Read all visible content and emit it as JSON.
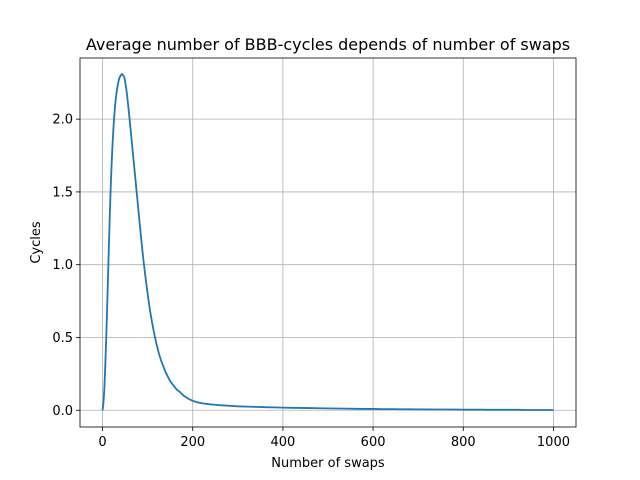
{
  "chart_data": {
    "type": "line",
    "title": "Average number of BBB-cycles depends of number of swaps",
    "xlabel": "Number of swaps",
    "ylabel": "Cycles",
    "xlim": [
      -50,
      1050
    ],
    "ylim": [
      -0.115,
      2.42
    ],
    "xticks": [
      0,
      200,
      400,
      600,
      800,
      1000
    ],
    "yticks": [
      0.0,
      0.5,
      1.0,
      1.5,
      2.0
    ],
    "xtick_labels": [
      "0",
      "200",
      "400",
      "600",
      "800",
      "1000"
    ],
    "ytick_labels": [
      "0.0",
      "0.5",
      "1.0",
      "1.5",
      "2.0"
    ],
    "grid": true,
    "line_color": "#1f77b4",
    "series": [
      {
        "x": [
          0,
          2,
          4,
          6,
          8,
          10,
          12,
          14,
          16,
          18,
          20,
          22,
          25,
          28,
          31,
          34,
          37,
          40,
          43,
          46,
          48,
          50,
          53,
          56,
          60,
          65,
          70,
          75,
          80,
          85,
          90,
          95,
          100,
          105,
          110,
          115,
          120,
          125,
          130,
          135,
          140,
          145,
          150,
          155,
          160,
          165,
          170,
          175,
          180,
          185,
          190,
          195,
          200,
          210,
          220,
          230,
          240,
          250,
          260,
          270,
          280,
          290,
          300,
          320,
          340,
          360,
          380,
          400,
          420,
          440,
          460,
          480,
          500,
          520,
          540,
          560,
          580,
          600,
          620,
          640,
          660,
          680,
          700,
          720,
          740,
          760,
          780,
          800,
          820,
          840,
          860,
          880,
          900,
          920,
          940,
          960,
          980,
          1000
        ],
        "y": [
          0.0,
          0.05,
          0.15,
          0.3,
          0.48,
          0.68,
          0.9,
          1.12,
          1.33,
          1.52,
          1.68,
          1.82,
          1.98,
          2.1,
          2.18,
          2.24,
          2.28,
          2.3,
          2.31,
          2.3,
          2.29,
          2.26,
          2.2,
          2.12,
          2.0,
          1.84,
          1.68,
          1.52,
          1.36,
          1.2,
          1.05,
          0.92,
          0.8,
          0.69,
          0.6,
          0.52,
          0.45,
          0.39,
          0.34,
          0.3,
          0.26,
          0.23,
          0.2,
          0.18,
          0.16,
          0.14,
          0.13,
          0.115,
          0.1,
          0.09,
          0.08,
          0.072,
          0.065,
          0.055,
          0.048,
          0.044,
          0.04,
          0.038,
          0.035,
          0.033,
          0.031,
          0.029,
          0.027,
          0.025,
          0.023,
          0.021,
          0.02,
          0.018,
          0.017,
          0.016,
          0.015,
          0.014,
          0.013,
          0.012,
          0.011,
          0.01,
          0.009,
          0.009,
          0.008,
          0.008,
          0.007,
          0.007,
          0.006,
          0.006,
          0.005,
          0.005,
          0.005,
          0.004,
          0.004,
          0.004,
          0.003,
          0.003,
          0.003,
          0.003,
          0.002,
          0.002,
          0.002,
          0.002
        ]
      }
    ]
  }
}
